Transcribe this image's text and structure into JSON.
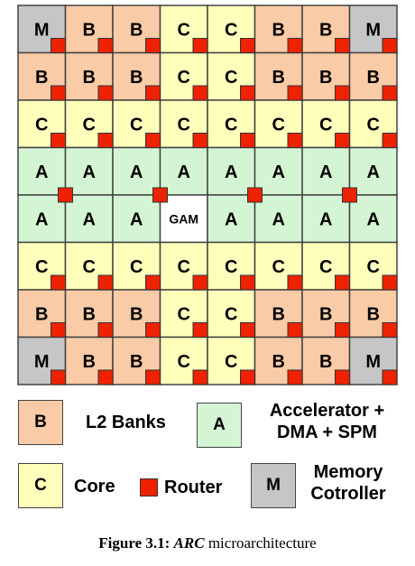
{
  "grid": {
    "rows": [
      [
        "M",
        "B",
        "B",
        "C",
        "C",
        "B",
        "B",
        "M"
      ],
      [
        "B",
        "B",
        "B",
        "C",
        "C",
        "B",
        "B",
        "B"
      ],
      [
        "C",
        "C",
        "C",
        "C",
        "C",
        "C",
        "C",
        "C"
      ],
      [
        "A",
        "A",
        "A",
        "A",
        "A",
        "A",
        "A",
        "A"
      ],
      [
        "A",
        "A",
        "A",
        "GAM",
        "A",
        "A",
        "A",
        "A"
      ],
      [
        "C",
        "C",
        "C",
        "C",
        "C",
        "C",
        "C",
        "C"
      ],
      [
        "B",
        "B",
        "B",
        "C",
        "C",
        "B",
        "B",
        "B"
      ],
      [
        "M",
        "B",
        "B",
        "C",
        "C",
        "B",
        "B",
        "M"
      ]
    ]
  },
  "colors": {
    "B": "#f9cba6",
    "C": "#ffffbb",
    "A": "#d4f5d4",
    "M": "#c6c6c6",
    "GAM": "#ffffff",
    "router": "#ee2200",
    "border": "#444444"
  },
  "legend": {
    "l2_letter": "B",
    "l2_label": "L2 Banks",
    "acc_letter": "A",
    "acc_label_line1": "Accelerator +",
    "acc_label_line2": "DMA + SPM",
    "core_letter": "C",
    "core_label": "Core",
    "router_label": "Router",
    "mem_letter": "M",
    "mem_label_line1": "Memory",
    "mem_label_line2": "Cotroller"
  },
  "caption": {
    "figure": "Figure 3.1:",
    "arc": "ARC",
    "rest": "microarchitecture"
  }
}
